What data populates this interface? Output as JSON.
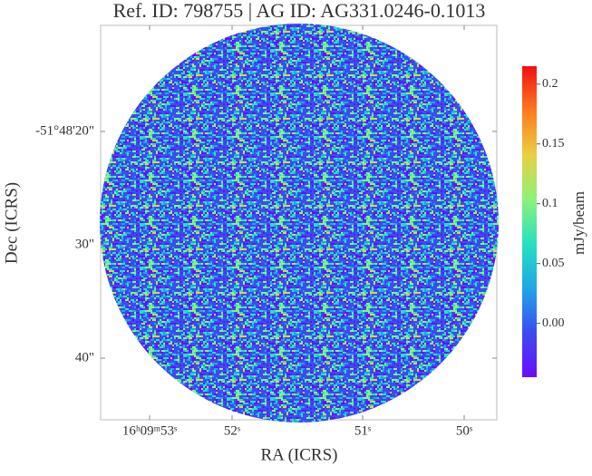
{
  "chart_data": {
    "type": "image",
    "title": "Ref. ID: 798755 | AG ID: AG331.0246-0.1013",
    "xlabel": "RA (ICRS)",
    "ylabel": "Dec (ICRS)",
    "xticklabels": [
      "16ʰ09ᵐ53ˢ",
      "52ˢ",
      "51ˢ",
      "50ˢ"
    ],
    "yticklabels": [
      "-51°48'20\"",
      "30\"",
      "40\""
    ],
    "colorbar": {
      "label": "mJy/beam",
      "clim": [
        -0.045,
        0.215
      ],
      "ticks": [
        {
          "value": 0,
          "label": "0.00"
        },
        0.05,
        0.1,
        0.15,
        0.2
      ],
      "colormap": [
        "#6a0dff",
        "#3b4cf0",
        "#1fa6e6",
        "#27e0c0",
        "#8cf27a",
        "#e8d040",
        "#ff7a20",
        "#f01010"
      ]
    }
  }
}
